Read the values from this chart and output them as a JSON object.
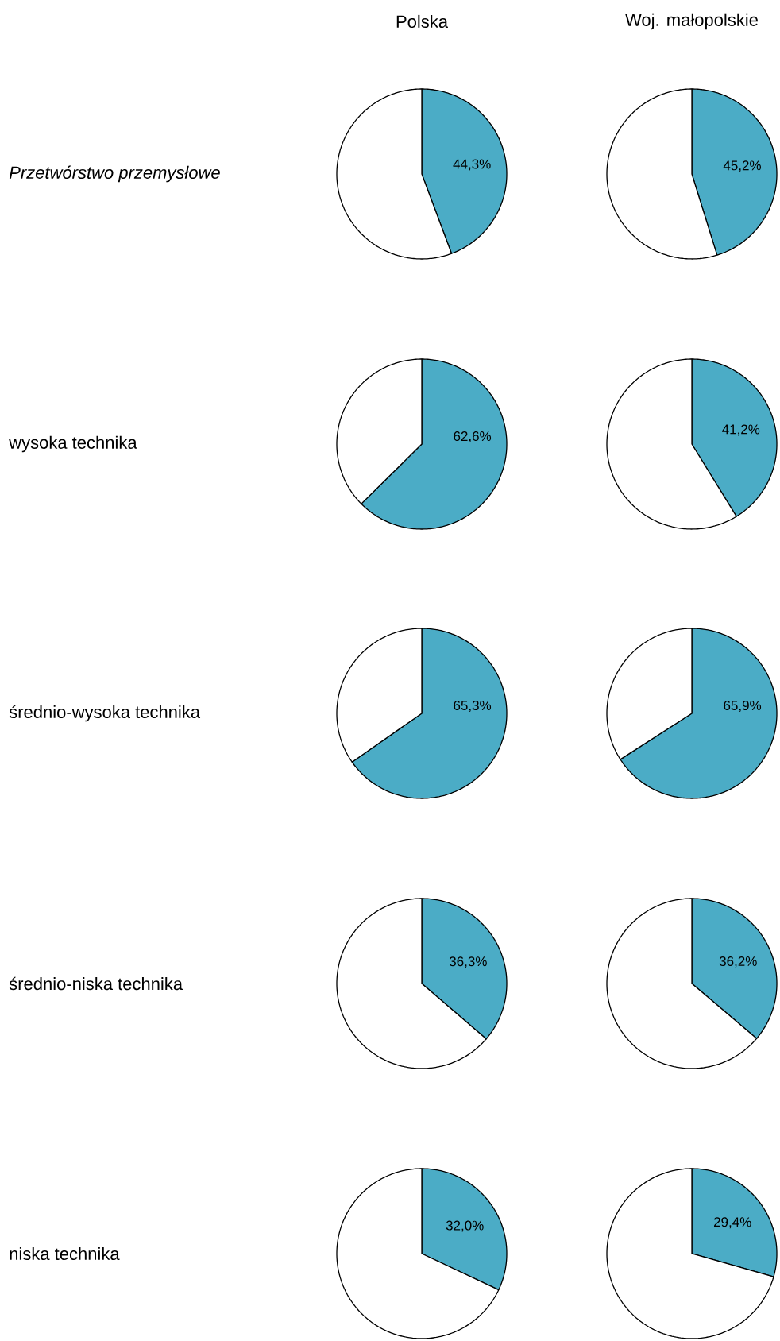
{
  "chart_data": [
    {
      "type": "pie",
      "title": "Polska",
      "ylabel": "Przetwórstwo przemysłowe",
      "categories": [
        null,
        null
      ],
      "values": [
        44.3,
        55.7
      ],
      "colors": [
        "#4bacc6",
        "#ffffff"
      ],
      "value_labels": [
        "44,3%",
        null
      ]
    },
    {
      "type": "pie",
      "title": "Woj. małopolskie",
      "categories": [
        null,
        null
      ],
      "values": [
        45.2,
        54.8
      ],
      "colors": [
        "#4bacc6",
        "#ffffff"
      ],
      "value_labels": [
        "45,2%",
        null
      ]
    },
    {
      "type": "pie",
      "ylabel": "wysoka technika",
      "categories": [
        null,
        null
      ],
      "values": [
        62.6,
        37.4
      ],
      "colors": [
        "#4bacc6",
        "#ffffff"
      ],
      "value_labels": [
        "62,6%",
        null
      ]
    },
    {
      "type": "pie",
      "categories": [
        null,
        null
      ],
      "values": [
        41.2,
        58.8
      ],
      "colors": [
        "#4bacc6",
        "#ffffff"
      ],
      "value_labels": [
        "41,2%",
        null
      ]
    },
    {
      "type": "pie",
      "ylabel": "średnio-wysoka technika",
      "categories": [
        null,
        null
      ],
      "values": [
        65.3,
        34.7
      ],
      "colors": [
        "#4bacc6",
        "#ffffff"
      ],
      "value_labels": [
        "65,3%",
        null
      ]
    },
    {
      "type": "pie",
      "categories": [
        null,
        null
      ],
      "values": [
        65.9,
        34.1
      ],
      "colors": [
        "#4bacc6",
        "#ffffff"
      ],
      "value_labels": [
        "65,9%",
        null
      ]
    },
    {
      "type": "pie",
      "ylabel": "średnio-niska technika",
      "categories": [
        null,
        null
      ],
      "values": [
        36.3,
        63.7
      ],
      "colors": [
        "#4bacc6",
        "#ffffff"
      ],
      "value_labels": [
        "36,3%",
        null
      ]
    },
    {
      "type": "pie",
      "categories": [
        null,
        null
      ],
      "values": [
        36.2,
        63.8
      ],
      "colors": [
        "#4bacc6",
        "#ffffff"
      ],
      "value_labels": [
        "36,2%",
        null
      ]
    },
    {
      "type": "pie",
      "ylabel": "niska technika",
      "categories": [
        null,
        null
      ],
      "values": [
        32.0,
        68.0
      ],
      "colors": [
        "#4bacc6",
        "#ffffff"
      ],
      "value_labels": [
        "32,0%",
        null
      ]
    },
    {
      "type": "pie",
      "categories": [
        null,
        null
      ],
      "values": [
        29.4,
        70.6
      ],
      "colors": [
        "#4bacc6",
        "#ffffff"
      ],
      "value_labels": [
        "29,4%",
        null
      ]
    }
  ]
}
